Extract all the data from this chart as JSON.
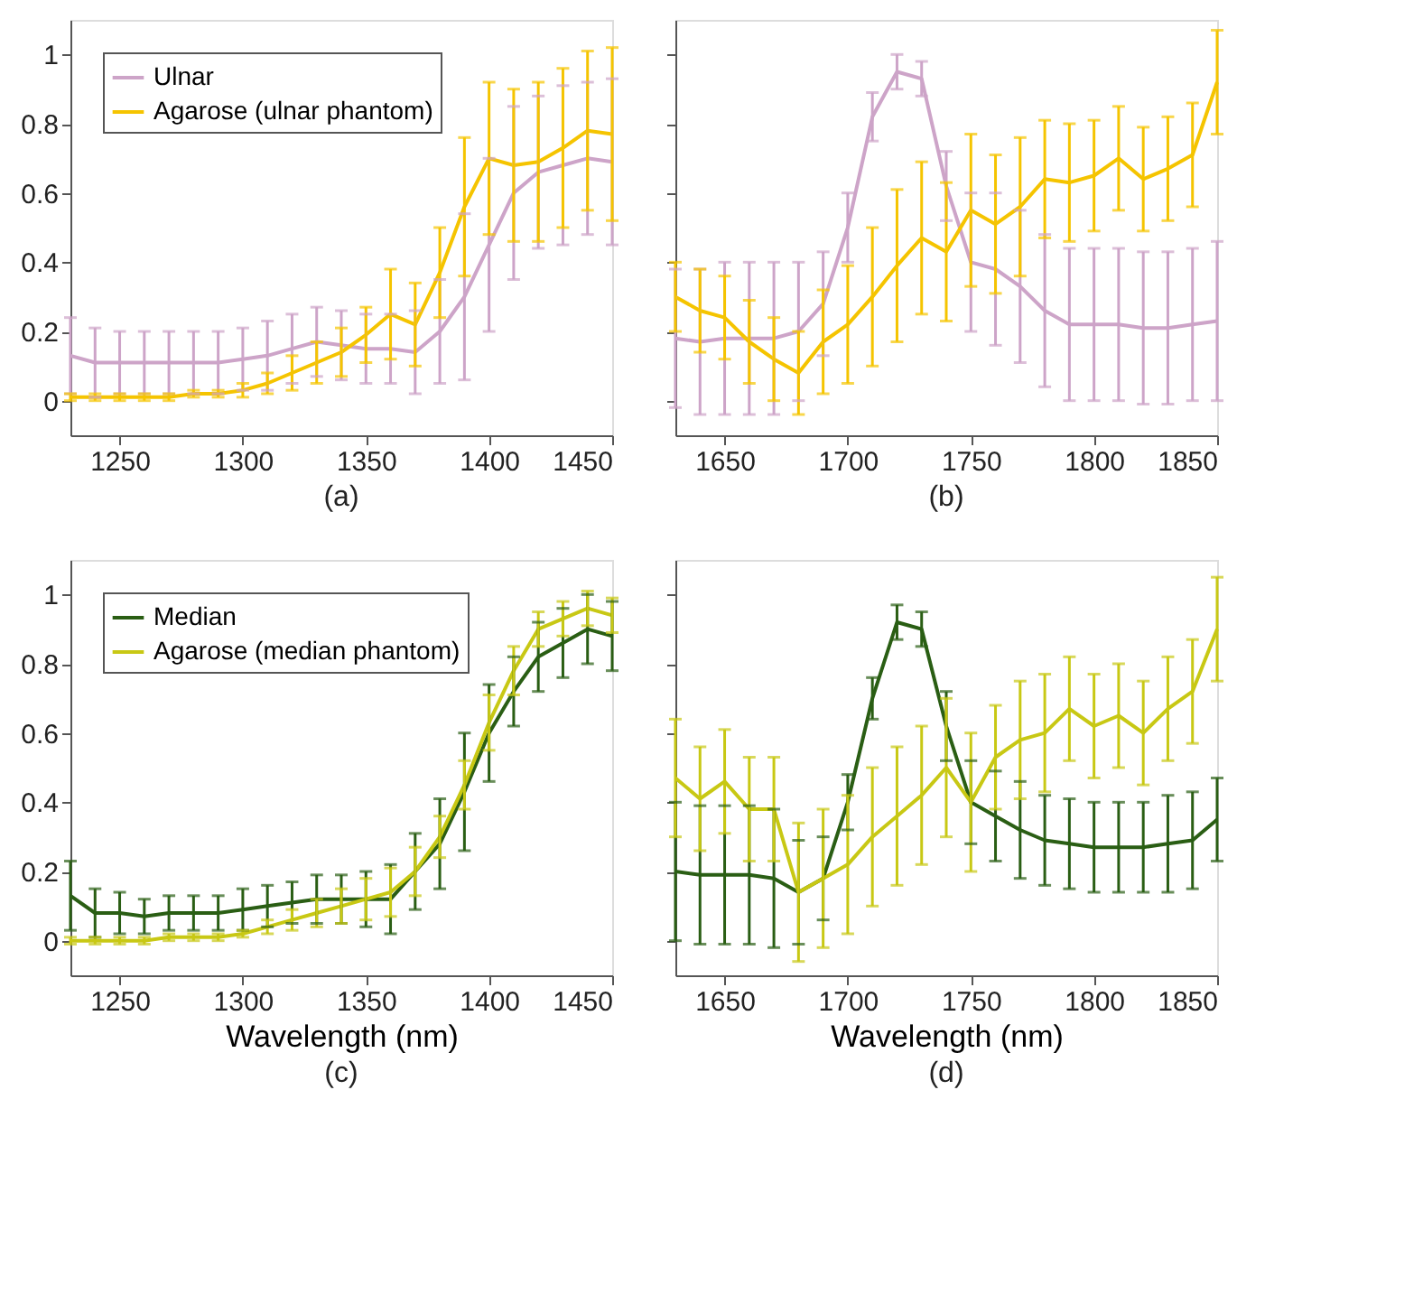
{
  "chart_data": [
    {
      "type": "line",
      "title": "(a)",
      "legend": "top left",
      "grid": false,
      "xlim": [
        1230,
        1450
      ],
      "xticks": [
        1250,
        1300,
        1350,
        1400,
        1450
      ],
      "ylim": [
        -0.1,
        1.1
      ],
      "yticks": [
        0,
        0.2,
        0.4,
        0.6,
        0.8,
        1
      ],
      "x": [
        1230,
        1240,
        1250,
        1260,
        1270,
        1280,
        1290,
        1300,
        1310,
        1320,
        1330,
        1340,
        1350,
        1360,
        1370,
        1380,
        1390,
        1400,
        1410,
        1420,
        1430,
        1440,
        1450
      ],
      "series": [
        {
          "name": "Ulnar",
          "color": "#cda4c8",
          "values": [
            0.13,
            0.11,
            0.11,
            0.11,
            0.11,
            0.11,
            0.11,
            0.12,
            0.13,
            0.15,
            0.17,
            0.16,
            0.15,
            0.15,
            0.14,
            0.2,
            0.3,
            0.45,
            0.6,
            0.66,
            0.68,
            0.7,
            0.69
          ],
          "errors": [
            0.11,
            0.1,
            0.09,
            0.09,
            0.09,
            0.09,
            0.09,
            0.09,
            0.1,
            0.1,
            0.1,
            0.1,
            0.1,
            0.1,
            0.12,
            0.15,
            0.24,
            0.25,
            0.25,
            0.22,
            0.23,
            0.22,
            0.24
          ]
        },
        {
          "name": "Agarose (ulnar phantom)",
          "color": "#f5c400",
          "values": [
            0.01,
            0.01,
            0.01,
            0.01,
            0.01,
            0.02,
            0.02,
            0.03,
            0.05,
            0.08,
            0.11,
            0.14,
            0.19,
            0.25,
            0.22,
            0.37,
            0.56,
            0.7,
            0.68,
            0.69,
            0.73,
            0.78,
            0.77
          ],
          "errors": [
            0.01,
            0.01,
            0.01,
            0.01,
            0.01,
            0.01,
            0.01,
            0.02,
            0.03,
            0.05,
            0.06,
            0.07,
            0.08,
            0.13,
            0.12,
            0.13,
            0.2,
            0.22,
            0.22,
            0.23,
            0.23,
            0.23,
            0.25
          ]
        }
      ]
    },
    {
      "type": "line",
      "title": "(b)",
      "tick_labels": "x",
      "grid": false,
      "xlim": [
        1630,
        1850
      ],
      "xticks": [
        1650,
        1700,
        1750,
        1800,
        1850
      ],
      "ylim": [
        -0.1,
        1.1
      ],
      "yticks": [
        0,
        0.2,
        0.4,
        0.6,
        0.8,
        1
      ],
      "x": [
        1630,
        1640,
        1650,
        1660,
        1670,
        1680,
        1690,
        1700,
        1710,
        1720,
        1730,
        1740,
        1750,
        1760,
        1770,
        1780,
        1790,
        1800,
        1810,
        1820,
        1830,
        1840,
        1850
      ],
      "series": [
        {
          "color": "#cda4c8",
          "values": [
            0.18,
            0.17,
            0.18,
            0.18,
            0.18,
            0.2,
            0.28,
            0.5,
            0.82,
            0.95,
            0.93,
            0.62,
            0.4,
            0.38,
            0.33,
            0.26,
            0.22,
            0.22,
            0.22,
            0.21,
            0.21,
            0.22,
            0.23
          ],
          "errors": [
            0.2,
            0.21,
            0.22,
            0.22,
            0.22,
            0.2,
            0.15,
            0.1,
            0.07,
            0.05,
            0.05,
            0.1,
            0.2,
            0.22,
            0.22,
            0.22,
            0.22,
            0.22,
            0.22,
            0.22,
            0.22,
            0.22,
            0.23
          ]
        },
        {
          "color": "#f5c400",
          "values": [
            0.3,
            0.26,
            0.24,
            0.17,
            0.12,
            0.08,
            0.17,
            0.22,
            0.3,
            0.39,
            0.47,
            0.43,
            0.55,
            0.51,
            0.56,
            0.64,
            0.63,
            0.65,
            0.7,
            0.64,
            0.67,
            0.71,
            0.92
          ],
          "errors": [
            0.1,
            0.12,
            0.12,
            0.12,
            0.12,
            0.12,
            0.15,
            0.17,
            0.2,
            0.22,
            0.22,
            0.2,
            0.22,
            0.2,
            0.2,
            0.17,
            0.17,
            0.16,
            0.15,
            0.15,
            0.15,
            0.15,
            0.15
          ]
        }
      ]
    },
    {
      "type": "line",
      "title": "(c)",
      "xlabel": "Wavelength (nm)",
      "legend": "top left",
      "grid": false,
      "xlim": [
        1230,
        1450
      ],
      "xticks": [
        1250,
        1300,
        1350,
        1400,
        1450
      ],
      "ylim": [
        -0.1,
        1.1
      ],
      "yticks": [
        0,
        0.2,
        0.4,
        0.6,
        0.8,
        1
      ],
      "x": [
        1230,
        1240,
        1250,
        1260,
        1270,
        1280,
        1290,
        1300,
        1310,
        1320,
        1330,
        1340,
        1350,
        1360,
        1370,
        1380,
        1390,
        1400,
        1410,
        1420,
        1430,
        1440,
        1450
      ],
      "series": [
        {
          "name": "Median",
          "color": "#2a5e14",
          "values": [
            0.13,
            0.08,
            0.08,
            0.07,
            0.08,
            0.08,
            0.08,
            0.09,
            0.1,
            0.11,
            0.12,
            0.12,
            0.12,
            0.12,
            0.2,
            0.28,
            0.43,
            0.6,
            0.72,
            0.82,
            0.86,
            0.9,
            0.88
          ],
          "errors": [
            0.1,
            0.07,
            0.06,
            0.05,
            0.05,
            0.05,
            0.05,
            0.06,
            0.06,
            0.06,
            0.07,
            0.07,
            0.08,
            0.1,
            0.11,
            0.13,
            0.17,
            0.14,
            0.1,
            0.1,
            0.1,
            0.1,
            0.1
          ]
        },
        {
          "name": "Agarose (median phantom)",
          "color": "#c8c814",
          "values": [
            0.0,
            0.0,
            0.0,
            0.0,
            0.01,
            0.01,
            0.01,
            0.02,
            0.04,
            0.06,
            0.08,
            0.1,
            0.12,
            0.14,
            0.2,
            0.3,
            0.45,
            0.63,
            0.78,
            0.9,
            0.93,
            0.96,
            0.94
          ],
          "errors": [
            0.01,
            0.01,
            0.01,
            0.01,
            0.01,
            0.01,
            0.01,
            0.01,
            0.02,
            0.03,
            0.04,
            0.05,
            0.06,
            0.07,
            0.07,
            0.06,
            0.07,
            0.08,
            0.07,
            0.05,
            0.05,
            0.05,
            0.05
          ]
        }
      ]
    },
    {
      "type": "line",
      "title": "(d)",
      "xlabel": "Wavelength (nm)",
      "tick_labels": "x",
      "grid": false,
      "xlim": [
        1630,
        1850
      ],
      "xticks": [
        1650,
        1700,
        1750,
        1800,
        1850
      ],
      "ylim": [
        -0.1,
        1.1
      ],
      "yticks": [
        0,
        0.2,
        0.4,
        0.6,
        0.8,
        1
      ],
      "x": [
        1630,
        1640,
        1650,
        1660,
        1670,
        1680,
        1690,
        1700,
        1710,
        1720,
        1730,
        1740,
        1750,
        1760,
        1770,
        1780,
        1790,
        1800,
        1810,
        1820,
        1830,
        1840,
        1850
      ],
      "series": [
        {
          "color": "#2a5e14",
          "values": [
            0.2,
            0.19,
            0.19,
            0.19,
            0.18,
            0.14,
            0.18,
            0.4,
            0.7,
            0.92,
            0.9,
            0.62,
            0.4,
            0.36,
            0.32,
            0.29,
            0.28,
            0.27,
            0.27,
            0.27,
            0.28,
            0.29,
            0.35
          ],
          "errors": [
            0.2,
            0.2,
            0.2,
            0.2,
            0.2,
            0.15,
            0.12,
            0.08,
            0.06,
            0.05,
            0.05,
            0.1,
            0.12,
            0.13,
            0.14,
            0.13,
            0.13,
            0.13,
            0.13,
            0.13,
            0.14,
            0.14,
            0.12
          ]
        },
        {
          "color": "#c8c814",
          "values": [
            0.47,
            0.41,
            0.46,
            0.38,
            0.38,
            0.14,
            0.18,
            0.22,
            0.3,
            0.36,
            0.42,
            0.5,
            0.4,
            0.53,
            0.58,
            0.6,
            0.67,
            0.62,
            0.65,
            0.6,
            0.67,
            0.72,
            0.9
          ],
          "errors": [
            0.17,
            0.15,
            0.15,
            0.15,
            0.15,
            0.2,
            0.2,
            0.2,
            0.2,
            0.2,
            0.2,
            0.2,
            0.2,
            0.15,
            0.17,
            0.17,
            0.15,
            0.15,
            0.15,
            0.15,
            0.15,
            0.15,
            0.15
          ]
        }
      ]
    }
  ]
}
